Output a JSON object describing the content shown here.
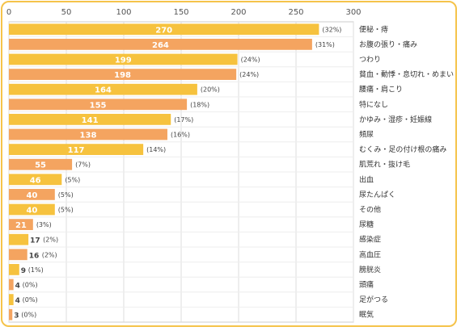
{
  "chart_data": {
    "type": "bar",
    "orientation": "horizontal",
    "xlim": [
      0,
      300
    ],
    "x_ticks": [
      0,
      50,
      100,
      150,
      200,
      250,
      300
    ],
    "grid": true,
    "colors": [
      "#f6c23e",
      "#f4a460"
    ],
    "categories": [
      "便秘・痔",
      "お腹の張り・痛み",
      "つわり",
      "貧血・動悸・息切れ・めまい",
      "腰痛・肩こり",
      "特になし",
      "かゆみ・湿疹・妊娠線",
      "頻尿",
      "むくみ・足の付け根の痛み",
      "肌荒れ・抜け毛",
      "出血",
      "尿たんぱく",
      "その他",
      "尿糖",
      "感染症",
      "高血圧",
      "膀胱炎",
      "頭痛",
      "足がつる",
      "眠気"
    ],
    "values": [
      270,
      264,
      199,
      198,
      164,
      155,
      141,
      138,
      117,
      55,
      46,
      40,
      40,
      21,
      17,
      16,
      9,
      4,
      4,
      3
    ],
    "percent_labels": [
      "(32%)",
      "(31%)",
      "(24%)",
      "(24%)",
      "(20%)",
      "(18%)",
      "(17%)",
      "(16%)",
      "(14%)",
      "(7%)",
      "(5%)",
      "(5%)",
      "(5%)",
      "(3%)",
      "(2%)",
      "(2%)",
      "(1%)",
      "(0%)",
      "(0%)",
      "(0%)"
    ]
  }
}
